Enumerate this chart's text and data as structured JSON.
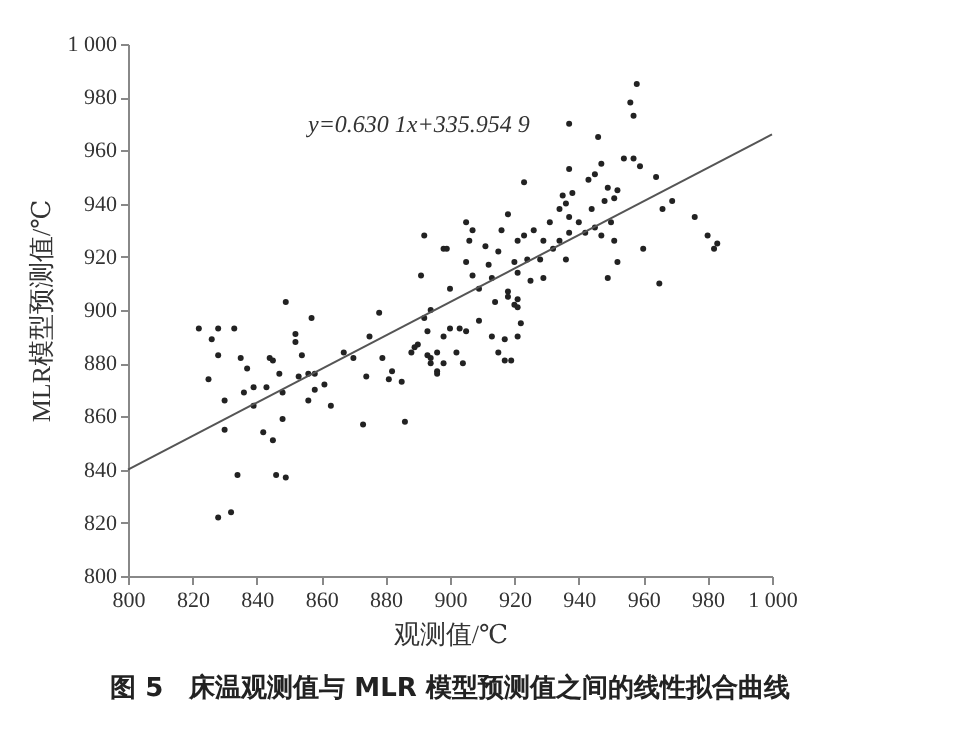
{
  "chart_data": {
    "type": "scatter",
    "title": "图 5　床温观测值与 MLR 模型预测值之间的线性拟合曲线",
    "xlabel": "观测值/℃",
    "ylabel": "MLR模型预测值/℃",
    "annotations": [
      "y=0.630 1x+335.954 9"
    ],
    "xlim": [
      800,
      1000
    ],
    "xticks": [
      800,
      820,
      840,
      860,
      880,
      900,
      920,
      940,
      960,
      980,
      {
        "value": 1000,
        "label": "1 000"
      }
    ],
    "ylim": [
      800,
      1000
    ],
    "yticks": [
      800,
      820,
      840,
      860,
      880,
      900,
      920,
      940,
      960,
      980,
      {
        "value": 1000,
        "label": "1 000"
      }
    ],
    "grid": false,
    "marker": "circle",
    "series": [
      {
        "color": "#222222",
        "x": [
          822,
          828,
          833,
          826,
          828,
          825,
          830,
          830,
          834,
          828,
          832,
          849,
          835,
          837,
          836,
          839,
          843,
          839,
          842,
          845,
          846,
          849,
          844,
          845,
          848,
          848,
          847,
          852,
          852,
          857,
          854,
          853,
          856,
          858,
          856,
          858,
          861,
          863,
          867,
          870,
          873,
          874,
          875,
          878,
          879,
          881,
          882,
          885,
          886,
          888,
          889,
          890,
          892,
          893,
          894,
          896,
          898,
          900,
          892,
          898,
          891,
          958,
          956,
          957,
          937,
          946,
          923,
          937,
          943,
          945,
          947,
          954,
          957,
          959,
          964,
          935,
          938,
          949,
          952,
          934,
          936,
          944,
          948,
          951,
          918,
          931,
          937,
          940,
          945,
          950,
          966,
          969,
          976,
          980,
          983,
          982,
          926,
          923,
          929,
          934,
          937,
          942,
          947,
          951,
          960,
          952,
          949,
          965,
          916,
          921,
          905,
          907,
          906,
          899,
          911,
          915,
          905,
          912,
          920,
          924,
          928,
          932,
          907,
          913,
          921,
          925,
          929,
          936,
          900,
          909,
          918,
          921,
          914,
          920,
          918,
          921,
          903,
          905,
          909,
          913,
          917,
          921,
          922,
          902,
          904,
          915,
          917,
          919,
          896,
          894,
          893,
          894,
          896,
          898
        ],
        "values": [
          893,
          893,
          893,
          889,
          883,
          874,
          866,
          855,
          838,
          822,
          824,
          903,
          882,
          878,
          869,
          871,
          871,
          864,
          854,
          851,
          838,
          837,
          882,
          881,
          869,
          859,
          876,
          891,
          888,
          897,
          883,
          875,
          876,
          876,
          866,
          870,
          872,
          864,
          884,
          882,
          857,
          875,
          890,
          899,
          882,
          874,
          877,
          873,
          858,
          884,
          886,
          887,
          897,
          892,
          880,
          876,
          880,
          893,
          928,
          923,
          913,
          985,
          978,
          973,
          970,
          965,
          948,
          953,
          949,
          951,
          955,
          957,
          957,
          954,
          950,
          943,
          944,
          946,
          945,
          938,
          940,
          938,
          941,
          942,
          936,
          933,
          935,
          933,
          931,
          933,
          938,
          941,
          935,
          928,
          925,
          923,
          930,
          928,
          926,
          926,
          929,
          929,
          928,
          926,
          923,
          918,
          912,
          910,
          930,
          926,
          933,
          930,
          926,
          923,
          924,
          922,
          918,
          917,
          918,
          919,
          919,
          923,
          913,
          912,
          914,
          911,
          912,
          919,
          908,
          908,
          907,
          904,
          903,
          902,
          905,
          901,
          893,
          892,
          896,
          890,
          889,
          890,
          895,
          884,
          880,
          884,
          881,
          881,
          877,
          882,
          883,
          900,
          884,
          890
        ]
      },
      {
        "type": "line",
        "marker": "none",
        "color": "#555555",
        "x": [
          800,
          1000
        ],
        "values": [
          840,
          966
        ]
      }
    ]
  }
}
